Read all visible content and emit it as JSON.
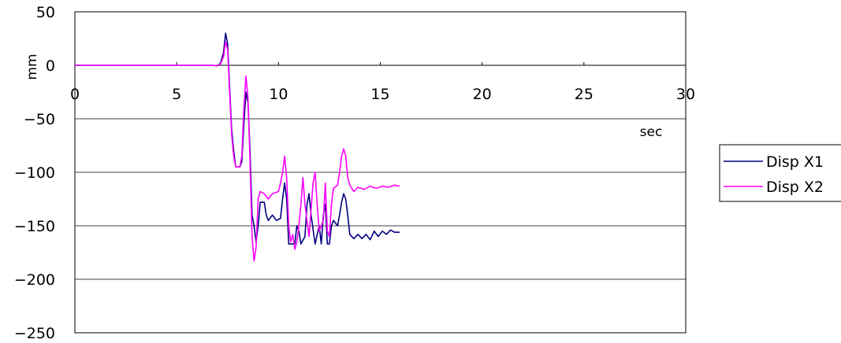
{
  "chart_data": {
    "type": "line",
    "title": "",
    "xlabel": "sec",
    "ylabel": "mm",
    "xlim": [
      0,
      30
    ],
    "ylim": [
      -250,
      50
    ],
    "x_ticks": [
      "0",
      "5",
      "10",
      "15",
      "20",
      "25",
      "30"
    ],
    "y_ticks": [
      "50",
      "0",
      "-50",
      "-100",
      "-150",
      "-200",
      "-250"
    ],
    "grid": "horizontal",
    "legend_position": "right",
    "series": [
      {
        "name": "Disp X1",
        "color": "#000080",
        "points": [
          [
            0,
            0
          ],
          [
            6.8,
            0
          ],
          [
            7.0,
            -0.5
          ],
          [
            7.15,
            2
          ],
          [
            7.3,
            12
          ],
          [
            7.4,
            30
          ],
          [
            7.5,
            20
          ],
          [
            7.6,
            -20
          ],
          [
            7.7,
            -60
          ],
          [
            7.8,
            -80
          ],
          [
            7.9,
            -95
          ],
          [
            8.1,
            -95
          ],
          [
            8.2,
            -90
          ],
          [
            8.3,
            -55
          ],
          [
            8.4,
            -25
          ],
          [
            8.5,
            -35
          ],
          [
            8.6,
            -80
          ],
          [
            8.7,
            -140
          ],
          [
            8.8,
            -150
          ],
          [
            8.9,
            -165
          ],
          [
            9.0,
            -150
          ],
          [
            9.1,
            -128
          ],
          [
            9.3,
            -128
          ],
          [
            9.4,
            -140
          ],
          [
            9.5,
            -145
          ],
          [
            9.7,
            -140
          ],
          [
            9.9,
            -145
          ],
          [
            10.1,
            -143
          ],
          [
            10.2,
            -125
          ],
          [
            10.3,
            -110
          ],
          [
            10.4,
            -125
          ],
          [
            10.5,
            -167
          ],
          [
            10.8,
            -167
          ],
          [
            10.9,
            -150
          ],
          [
            11.0,
            -155
          ],
          [
            11.1,
            -167
          ],
          [
            11.3,
            -160
          ],
          [
            11.4,
            -130
          ],
          [
            11.5,
            -120
          ],
          [
            11.6,
            -140
          ],
          [
            11.8,
            -167
          ],
          [
            12.0,
            -150
          ],
          [
            12.1,
            -167
          ],
          [
            12.2,
            -140
          ],
          [
            12.3,
            -130
          ],
          [
            12.4,
            -167
          ],
          [
            12.5,
            -167
          ],
          [
            12.6,
            -150
          ],
          [
            12.7,
            -145
          ],
          [
            12.9,
            -150
          ],
          [
            13.0,
            -140
          ],
          [
            13.1,
            -128
          ],
          [
            13.2,
            -120
          ],
          [
            13.3,
            -125
          ],
          [
            13.4,
            -140
          ],
          [
            13.5,
            -158
          ],
          [
            13.7,
            -162
          ],
          [
            13.9,
            -158
          ],
          [
            14.1,
            -162
          ],
          [
            14.3,
            -158
          ],
          [
            14.5,
            -163
          ],
          [
            14.7,
            -155
          ],
          [
            14.9,
            -160
          ],
          [
            15.1,
            -155
          ],
          [
            15.3,
            -158
          ],
          [
            15.5,
            -154
          ],
          [
            15.7,
            -156
          ],
          [
            15.95,
            -156
          ]
        ]
      },
      {
        "name": "Disp X2",
        "color": "#FF00FF",
        "points": [
          [
            0,
            0
          ],
          [
            6.8,
            0
          ],
          [
            7.0,
            -0.5
          ],
          [
            7.15,
            1
          ],
          [
            7.3,
            8
          ],
          [
            7.4,
            22
          ],
          [
            7.5,
            15
          ],
          [
            7.6,
            -25
          ],
          [
            7.7,
            -65
          ],
          [
            7.8,
            -85
          ],
          [
            7.9,
            -95
          ],
          [
            8.1,
            -95
          ],
          [
            8.2,
            -85
          ],
          [
            8.3,
            -40
          ],
          [
            8.4,
            -10
          ],
          [
            8.5,
            -30
          ],
          [
            8.6,
            -90
          ],
          [
            8.7,
            -160
          ],
          [
            8.8,
            -183
          ],
          [
            8.9,
            -170
          ],
          [
            9.0,
            -125
          ],
          [
            9.1,
            -118
          ],
          [
            9.3,
            -120
          ],
          [
            9.5,
            -125
          ],
          [
            9.7,
            -120
          ],
          [
            10.0,
            -118
          ],
          [
            10.1,
            -110
          ],
          [
            10.2,
            -100
          ],
          [
            10.3,
            -85
          ],
          [
            10.4,
            -105
          ],
          [
            10.5,
            -150
          ],
          [
            10.6,
            -165
          ],
          [
            10.7,
            -158
          ],
          [
            10.8,
            -172
          ],
          [
            10.9,
            -165
          ],
          [
            11.0,
            -150
          ],
          [
            11.1,
            -130
          ],
          [
            11.2,
            -105
          ],
          [
            11.3,
            -130
          ],
          [
            11.5,
            -160
          ],
          [
            11.7,
            -110
          ],
          [
            11.8,
            -100
          ],
          [
            11.9,
            -130
          ],
          [
            12.0,
            -155
          ],
          [
            12.2,
            -145
          ],
          [
            12.3,
            -110
          ],
          [
            12.4,
            -155
          ],
          [
            12.5,
            -160
          ],
          [
            12.6,
            -130
          ],
          [
            12.7,
            -115
          ],
          [
            12.9,
            -112
          ],
          [
            13.0,
            -100
          ],
          [
            13.1,
            -85
          ],
          [
            13.2,
            -78
          ],
          [
            13.3,
            -85
          ],
          [
            13.4,
            -105
          ],
          [
            13.5,
            -112
          ],
          [
            13.7,
            -118
          ],
          [
            13.9,
            -114
          ],
          [
            14.2,
            -116
          ],
          [
            14.5,
            -113
          ],
          [
            14.8,
            -115
          ],
          [
            15.1,
            -113
          ],
          [
            15.4,
            -114
          ],
          [
            15.7,
            -112
          ],
          [
            15.95,
            -113
          ]
        ]
      }
    ]
  }
}
